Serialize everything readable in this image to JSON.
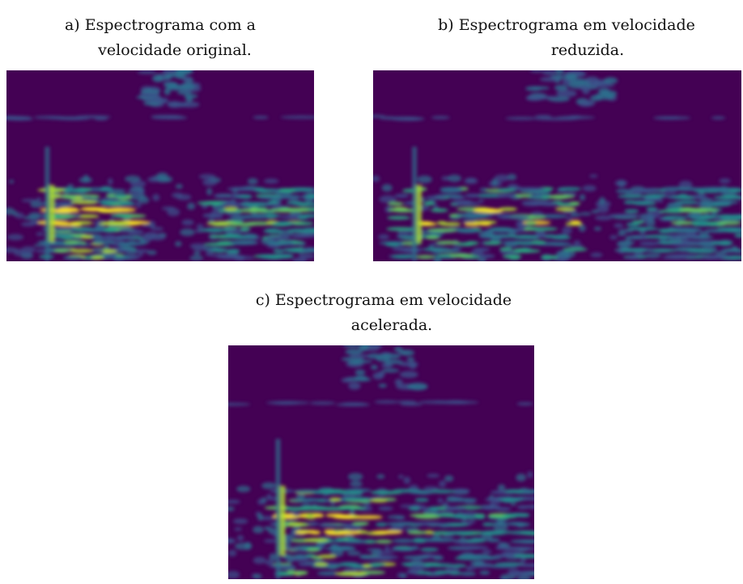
{
  "figure": {
    "panels": [
      {
        "caption": [
          "a) Espectrograma com a",
          "velocidade original."
        ]
      },
      {
        "caption": [
          "b) Espectrograma em velocidade",
          "reduzida."
        ]
      },
      {
        "caption": [
          "c) Espectrograma em velocidade",
          "acelerada."
        ]
      }
    ]
  }
}
